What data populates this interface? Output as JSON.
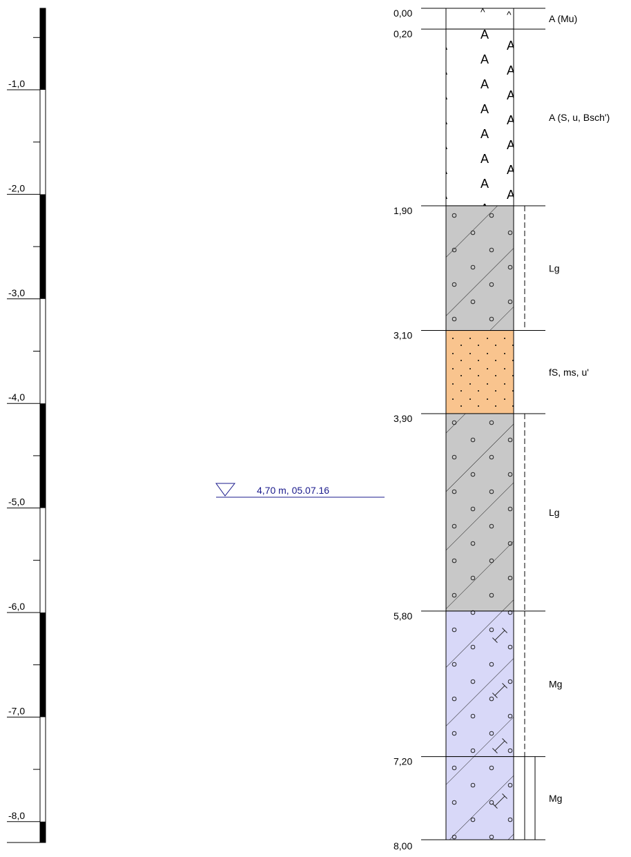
{
  "ruler": {
    "labels": [
      "-1,0",
      "-2,0",
      "-3,0",
      "-4,0",
      "-5,0",
      "-6,0",
      "-7,0",
      "-8,0"
    ]
  },
  "layers": [
    {
      "top": "0,00",
      "description": "A (Mu)"
    },
    {
      "top": "0,20",
      "description": "A (S, u, Bsch')"
    },
    {
      "top": "1,90",
      "description": "Lg"
    },
    {
      "top": "3,10",
      "description": "fS, ms, u'"
    },
    {
      "top": "3,90",
      "description": "Lg"
    },
    {
      "top": "5,80",
      "description": "Mg"
    },
    {
      "top": "7,20",
      "description": "Mg"
    }
  ],
  "bottom": "8,00",
  "water_level": "4,70 m, 05.07.16"
}
